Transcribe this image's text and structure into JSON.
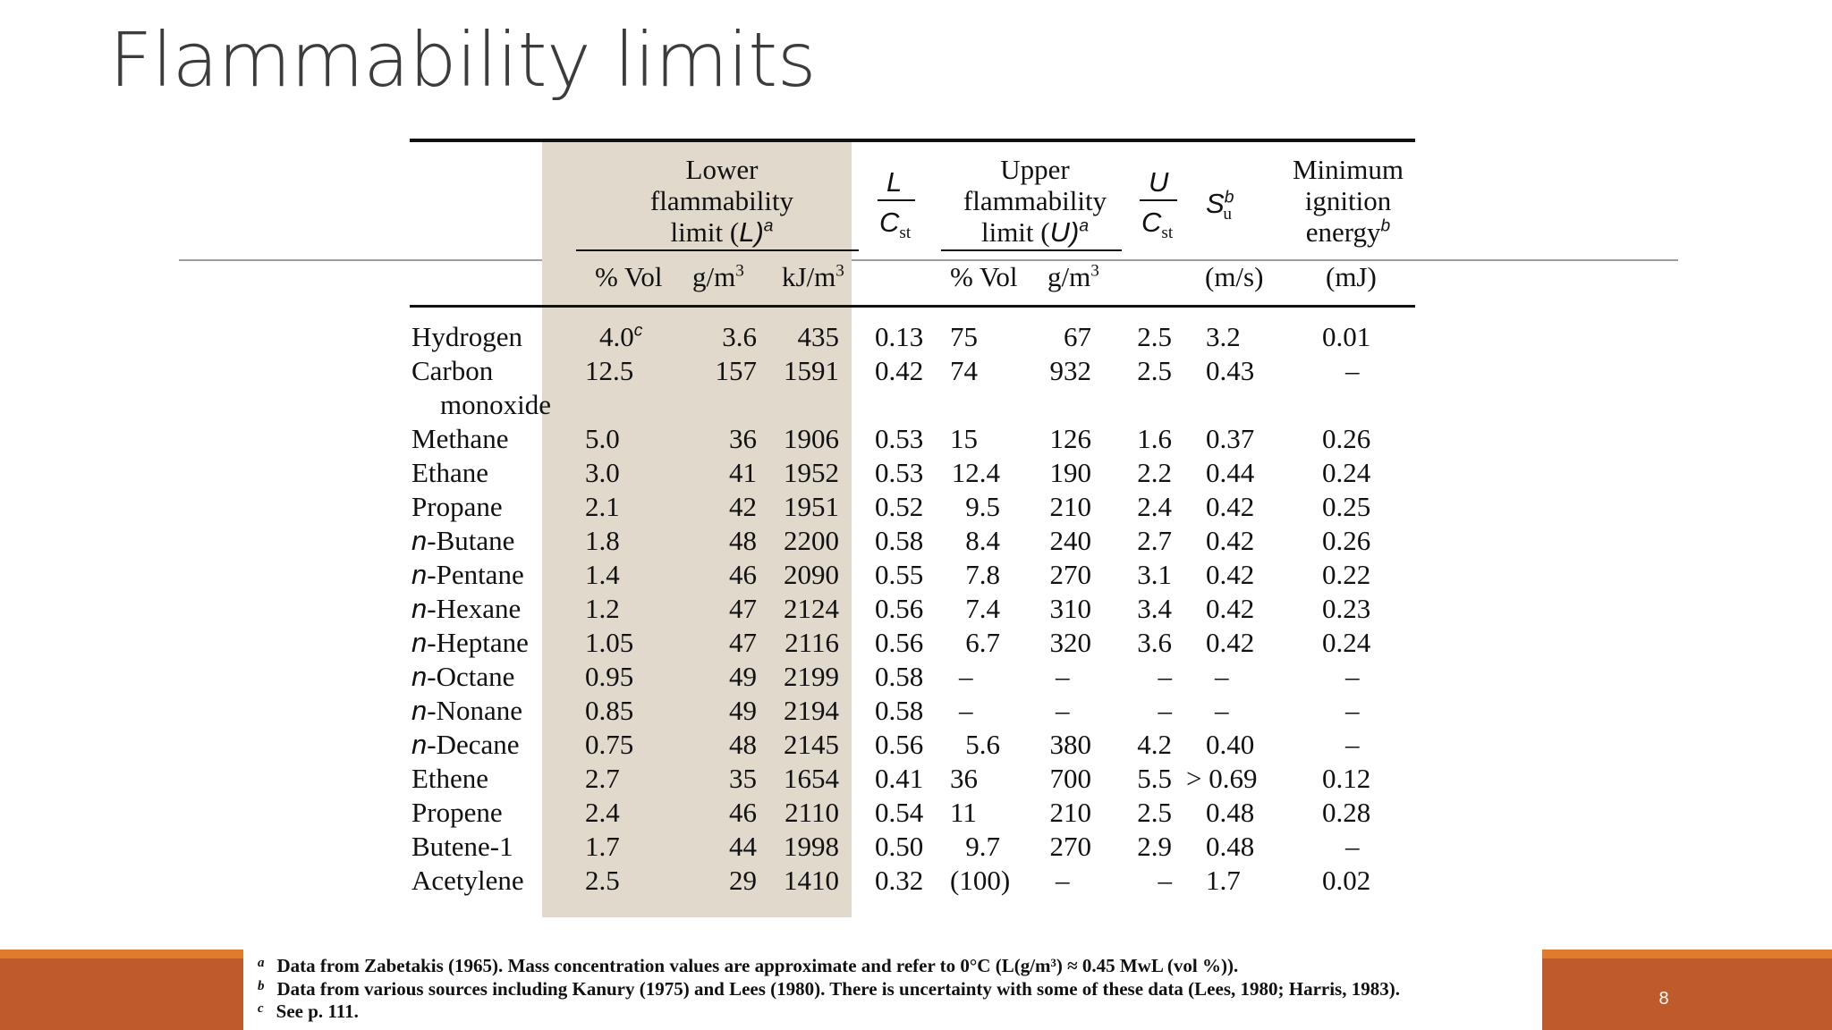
{
  "title": "Flammability limits",
  "header": {
    "lower_group": [
      "Lower",
      "flammability",
      "limit (",
      "L",
      ")",
      "a"
    ],
    "upper_group": [
      "Upper",
      "flammability",
      "limit (",
      "U",
      ")",
      "a"
    ],
    "l_num": "L",
    "u_num": "U",
    "cst_c": "C",
    "cst_sub": "st",
    "su_s": "S",
    "su_sub": "u",
    "su_sup": "b",
    "min_ign": [
      "Minimum",
      "ignition",
      "energy",
      "b"
    ],
    "units": {
      "vol_l": "% Vol",
      "gm3_l": "g/m",
      "kj": "kJ/m",
      "cube": "3",
      "vol_u": "% Vol",
      "gm3_u": "g/m",
      "ms": "(m/s)",
      "mj": "(mJ)"
    }
  },
  "rows": [
    {
      "prefix": "",
      "name": "Hydrogen",
      "name2": "",
      "lvol": "4.0",
      "lvol_sup": "c",
      "lg": "3.6",
      "lkj": "435",
      "lc": "0.13",
      "uvol": "75",
      "ug": "67",
      "uc": "2.5",
      "su": "3.2",
      "e": "0.01"
    },
    {
      "prefix": "",
      "name": "Carbon",
      "name2": "monoxide",
      "lvol": "12.5",
      "lvol_sup": "",
      "lg": "157",
      "lkj": "1591",
      "lc": "0.42",
      "uvol": "74",
      "ug": "932",
      "uc": "2.5",
      "su": "0.43",
      "e": "–"
    },
    {
      "prefix": "",
      "name": "Methane",
      "name2": "",
      "lvol": "5.0",
      "lvol_sup": "",
      "lg": "36",
      "lkj": "1906",
      "lc": "0.53",
      "uvol": "15",
      "ug": "126",
      "uc": "1.6",
      "su": "0.37",
      "e": "0.26"
    },
    {
      "prefix": "",
      "name": "Ethane",
      "name2": "",
      "lvol": "3.0",
      "lvol_sup": "",
      "lg": "41",
      "lkj": "1952",
      "lc": "0.53",
      "uvol": "12.4",
      "ug": "190",
      "uc": "2.2",
      "su": "0.44",
      "e": "0.24"
    },
    {
      "prefix": "",
      "name": "Propane",
      "name2": "",
      "lvol": "2.1",
      "lvol_sup": "",
      "lg": "42",
      "lkj": "1951",
      "lc": "0.52",
      "uvol": "9.5",
      "ug": "210",
      "uc": "2.4",
      "su": "0.42",
      "e": "0.25"
    },
    {
      "prefix": "n",
      "name": "-Butane",
      "name2": "",
      "lvol": "1.8",
      "lvol_sup": "",
      "lg": "48",
      "lkj": "2200",
      "lc": "0.58",
      "uvol": "8.4",
      "ug": "240",
      "uc": "2.7",
      "su": "0.42",
      "e": "0.26"
    },
    {
      "prefix": "n",
      "name": "-Pentane",
      "name2": "",
      "lvol": "1.4",
      "lvol_sup": "",
      "lg": "46",
      "lkj": "2090",
      "lc": "0.55",
      "uvol": "7.8",
      "ug": "270",
      "uc": "3.1",
      "su": "0.42",
      "e": "0.22"
    },
    {
      "prefix": "n",
      "name": "-Hexane",
      "name2": "",
      "lvol": "1.2",
      "lvol_sup": "",
      "lg": "47",
      "lkj": "2124",
      "lc": "0.56",
      "uvol": "7.4",
      "ug": "310",
      "uc": "3.4",
      "su": "0.42",
      "e": "0.23"
    },
    {
      "prefix": "n",
      "name": "-Heptane",
      "name2": "",
      "lvol": "1.05",
      "lvol_sup": "",
      "lg": "47",
      "lkj": "2116",
      "lc": "0.56",
      "uvol": "6.7",
      "ug": "320",
      "uc": "3.6",
      "su": "0.42",
      "e": "0.24"
    },
    {
      "prefix": "n",
      "name": "-Octane",
      "name2": "",
      "lvol": "0.95",
      "lvol_sup": "",
      "lg": "49",
      "lkj": "2199",
      "lc": "0.58",
      "uvol": "–",
      "ug": "–",
      "uc": "–",
      "su": "–",
      "e": "–"
    },
    {
      "prefix": "n",
      "name": "-Nonane",
      "name2": "",
      "lvol": "0.85",
      "lvol_sup": "",
      "lg": "49",
      "lkj": "2194",
      "lc": "0.58",
      "uvol": "–",
      "ug": "–",
      "uc": "–",
      "su": "–",
      "e": "–"
    },
    {
      "prefix": "n",
      "name": "-Decane",
      "name2": "",
      "lvol": "0.75",
      "lvol_sup": "",
      "lg": "48",
      "lkj": "2145",
      "lc": "0.56",
      "uvol": "5.6",
      "ug": "380",
      "uc": "4.2",
      "su": "0.40",
      "e": "–"
    },
    {
      "prefix": "",
      "name": "Ethene",
      "name2": "",
      "lvol": "2.7",
      "lvol_sup": "",
      "lg": "35",
      "lkj": "1654",
      "lc": "0.41",
      "uvol": "36",
      "ug": "700",
      "uc": "5.5",
      "su": "> 0.69",
      "e": "0.12"
    },
    {
      "prefix": "",
      "name": "Propene",
      "name2": "",
      "lvol": "2.4",
      "lvol_sup": "",
      "lg": "46",
      "lkj": "2110",
      "lc": "0.54",
      "uvol": "11",
      "ug": "210",
      "uc": "2.5",
      "su": "0.48",
      "e": "0.28"
    },
    {
      "prefix": "",
      "name": "Butene-1",
      "name2": "",
      "lvol": "1.7",
      "lvol_sup": "",
      "lg": "44",
      "lkj": "1998",
      "lc": "0.50",
      "uvol": "9.7",
      "ug": "270",
      "uc": "2.9",
      "su": "0.48",
      "e": "–"
    },
    {
      "prefix": "",
      "name": "Acetylene",
      "name2": "",
      "lvol": "2.5",
      "lvol_sup": "",
      "lg": "29",
      "lkj": "1410",
      "lc": "0.32",
      "uvol": "(100)",
      "ug": "–",
      "uc": "–",
      "su": "1.7",
      "e": "0.02"
    }
  ],
  "footnotes": [
    {
      "mark": "a",
      "text": "Data from Zabetakis (1965). Mass concentration values are approximate and refer to 0°C (L(g/m³) ≈ 0.45 MwL (vol %))."
    },
    {
      "mark": "b",
      "text": "Data from various sources including Kanury (1975) and Lees (1980). There is uncertainty with some of these data (Lees, 1980; Harris, 1983)."
    },
    {
      "mark": "c",
      "text": "See p. 111."
    }
  ],
  "page_number": "8",
  "colors": {
    "shade": "#e0d9cc",
    "bar": "#bf5a2b",
    "bar_top": "#e07b2e",
    "title": "#3c3c3c"
  }
}
